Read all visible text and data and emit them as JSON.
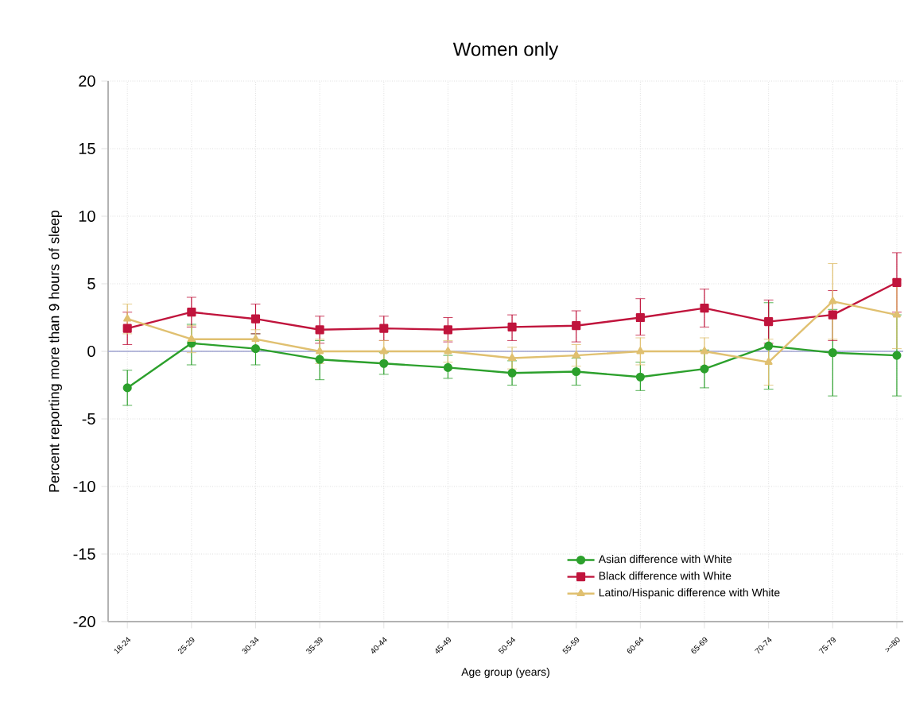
{
  "chart_data": {
    "type": "line",
    "title": "Women only",
    "xlabel": "Age group (years)",
    "ylabel": "Percent reporting more than 9 hours of sleep",
    "categories": [
      "18-24",
      "25-29",
      "30-34",
      "35-39",
      "40-44",
      "45-49",
      "50-54",
      "55-59",
      "60-64",
      "65-69",
      "70-74",
      "75-79",
      ">=80"
    ],
    "series": [
      {
        "name": "Asian difference with White",
        "color": "#2ca02c",
        "marker": "circle",
        "values": [
          -2.7,
          0.6,
          0.2,
          -0.6,
          -0.9,
          -1.2,
          -1.6,
          -1.5,
          -1.9,
          -1.3,
          0.4,
          -0.1,
          -0.3
        ],
        "errors": [
          [
            -4,
            -1.4
          ],
          [
            -1,
            2
          ],
          [
            -1,
            1.3
          ],
          [
            -2.1,
            0.8
          ],
          [
            -1.7,
            -0.1
          ],
          [
            -2,
            -0.3
          ],
          [
            -2.5,
            -0.7
          ],
          [
            -2.5,
            -0.5
          ],
          [
            -2.9,
            -0.8
          ],
          [
            -2.7,
            0.1
          ],
          [
            -2.8,
            3.6
          ],
          [
            -3.3,
            3.1
          ],
          [
            -3.3,
            2.7
          ]
        ]
      },
      {
        "name": "Black difference with White",
        "color": "#c0143c",
        "marker": "square",
        "values": [
          1.7,
          2.9,
          2.4,
          1.6,
          1.7,
          1.6,
          1.8,
          1.9,
          2.5,
          3.2,
          2.2,
          2.7,
          5.1
        ],
        "errors": [
          [
            0.5,
            2.9
          ],
          [
            1.8,
            4
          ],
          [
            1.3,
            3.5
          ],
          [
            0.6,
            2.6
          ],
          [
            0.8,
            2.6
          ],
          [
            0.7,
            2.5
          ],
          [
            0.8,
            2.7
          ],
          [
            0.7,
            3
          ],
          [
            1.2,
            3.9
          ],
          [
            1.8,
            4.6
          ],
          [
            0.6,
            3.8
          ],
          [
            0.8,
            4.5
          ],
          [
            2.9,
            7.3
          ]
        ]
      },
      {
        "name": "Latino/Hispanic difference with White",
        "color": "#e0c070",
        "marker": "triangle",
        "values": [
          2.4,
          0.9,
          0.9,
          0,
          0,
          0,
          -0.5,
          -0.3,
          0,
          0,
          -0.8,
          3.7,
          2.7
        ],
        "errors": [
          [
            1.3,
            3.5
          ],
          [
            -0.1,
            1.9
          ],
          [
            0.1,
            1.6
          ],
          [
            -0.9,
            0.9
          ],
          [
            -0.8,
            0.8
          ],
          [
            -0.8,
            0.8
          ],
          [
            -1.3,
            0.3
          ],
          [
            -1.1,
            0.5
          ],
          [
            -1,
            1
          ],
          [
            -1.1,
            1
          ],
          [
            -2.5,
            0.9
          ],
          [
            0.9,
            6.5
          ],
          [
            0.2,
            5.3
          ]
        ]
      }
    ],
    "ylim": [
      -20,
      20
    ],
    "yticks": [
      -20,
      -15,
      -10,
      -5,
      0,
      5,
      10,
      15,
      20
    ],
    "grid": true,
    "legend": "bottom right",
    "line_style": "solid",
    "ref_lines": [
      {
        "axis": "y",
        "value": 0,
        "color": "#9fa3d0"
      }
    ]
  }
}
